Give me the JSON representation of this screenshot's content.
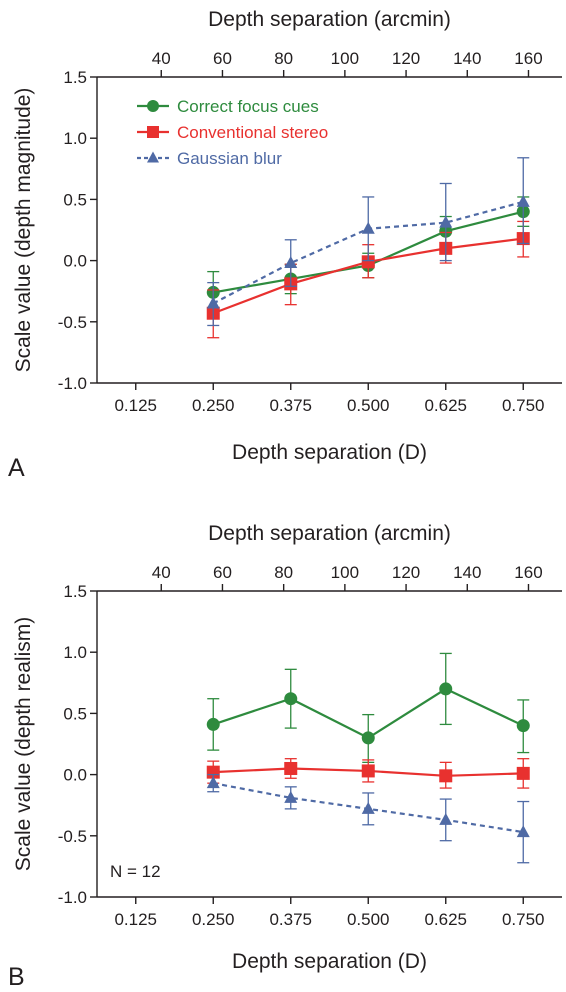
{
  "chart_data": [
    {
      "type": "line",
      "panel_label": "A",
      "xlabel": "Depth separation (D)",
      "x2label": "Depth separation (arcmin)",
      "ylabel": "Scale value (depth magnitude)",
      "xlim": [
        0.0625,
        0.8125
      ],
      "ylim": [
        -1.0,
        1.5
      ],
      "x_ticks": [
        "0.125",
        "0.250",
        "0.375",
        "0.500",
        "0.625",
        "0.750"
      ],
      "x_tick_values": [
        0.125,
        0.25,
        0.375,
        0.5,
        0.625,
        0.75
      ],
      "x2_ticks": [
        "40",
        "60",
        "80",
        "100",
        "120",
        "140",
        "160"
      ],
      "x2_tick_values": [
        40,
        60,
        80,
        100,
        120,
        140,
        160
      ],
      "y_ticks": [
        "-1.0",
        "-0.5",
        "0.0",
        "0.5",
        "1.0",
        "1.5"
      ],
      "y_tick_values": [
        -1.0,
        -0.5,
        0.0,
        0.5,
        1.0,
        1.5
      ],
      "legend_position": "top-left",
      "annotation": "",
      "x": [
        0.25,
        0.375,
        0.5,
        0.625,
        0.75
      ],
      "series": [
        {
          "name": "Correct focus cues",
          "color": "#2e8b3e",
          "marker": "circle",
          "dash": false,
          "values": [
            -0.26,
            -0.15,
            -0.04,
            0.24,
            0.4
          ],
          "err_low": [
            -0.42,
            -0.27,
            -0.14,
            0.12,
            0.28
          ],
          "err_high": [
            -0.09,
            -0.03,
            0.06,
            0.36,
            0.52
          ]
        },
        {
          "name": "Conventional stereo",
          "color": "#e8312f",
          "marker": "square",
          "dash": false,
          "values": [
            -0.43,
            -0.19,
            -0.01,
            0.1,
            0.18
          ],
          "err_low": [
            -0.63,
            -0.36,
            -0.14,
            -0.02,
            0.03
          ],
          "err_high": [
            -0.24,
            -0.03,
            0.13,
            0.23,
            0.32
          ]
        },
        {
          "name": "Gaussian blur",
          "color": "#4f6aa5",
          "marker": "triangle",
          "dash": true,
          "values": [
            -0.35,
            -0.02,
            0.26,
            0.31,
            0.48
          ],
          "err_low": [
            -0.53,
            -0.21,
            0.0,
            0.0,
            0.14
          ],
          "err_high": [
            -0.18,
            0.17,
            0.52,
            0.63,
            0.84
          ]
        }
      ]
    },
    {
      "type": "line",
      "panel_label": "B",
      "xlabel": "Depth separation (D)",
      "x2label": "Depth separation (arcmin)",
      "ylabel": "Scale value (depth realism)",
      "xlim": [
        0.0625,
        0.8125
      ],
      "ylim": [
        -1.0,
        1.5
      ],
      "x_ticks": [
        "0.125",
        "0.250",
        "0.375",
        "0.500",
        "0.625",
        "0.750"
      ],
      "x_tick_values": [
        0.125,
        0.25,
        0.375,
        0.5,
        0.625,
        0.75
      ],
      "x2_ticks": [
        "40",
        "60",
        "80",
        "100",
        "120",
        "140",
        "160"
      ],
      "x2_tick_values": [
        40,
        60,
        80,
        100,
        120,
        140,
        160
      ],
      "y_ticks": [
        "-1.0",
        "-0.5",
        "0.0",
        "0.5",
        "1.0",
        "1.5"
      ],
      "y_tick_values": [
        -1.0,
        -0.5,
        0.0,
        0.5,
        1.0,
        1.5
      ],
      "legend_position": "",
      "annotation": "N = 12",
      "x": [
        0.25,
        0.375,
        0.5,
        0.625,
        0.75
      ],
      "series": [
        {
          "name": "Correct focus cues",
          "color": "#2e8b3e",
          "marker": "circle",
          "dash": false,
          "values": [
            0.41,
            0.62,
            0.3,
            0.7,
            0.4
          ],
          "err_low": [
            0.2,
            0.38,
            0.1,
            0.41,
            0.18
          ],
          "err_high": [
            0.62,
            0.86,
            0.49,
            0.99,
            0.61
          ]
        },
        {
          "name": "Conventional stereo",
          "color": "#e8312f",
          "marker": "square",
          "dash": false,
          "values": [
            0.02,
            0.05,
            0.03,
            -0.01,
            0.01
          ],
          "err_low": [
            -0.07,
            -0.03,
            -0.06,
            -0.11,
            -0.11
          ],
          "err_high": [
            0.11,
            0.13,
            0.12,
            0.1,
            0.13
          ]
        },
        {
          "name": "Gaussian blur",
          "color": "#4f6aa5",
          "marker": "triangle",
          "dash": true,
          "values": [
            -0.07,
            -0.19,
            -0.28,
            -0.37,
            -0.47
          ],
          "err_low": [
            -0.14,
            -0.28,
            -0.41,
            -0.54,
            -0.72
          ],
          "err_high": [
            0.0,
            -0.1,
            -0.15,
            -0.2,
            -0.22
          ]
        }
      ]
    }
  ]
}
